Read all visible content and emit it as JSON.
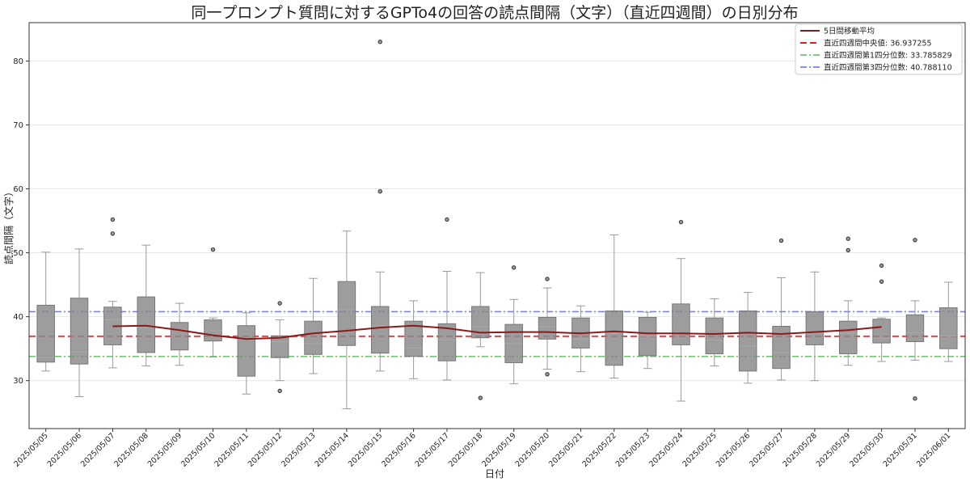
{
  "chart_data": {
    "type": "box",
    "title": "同一プロンプト質問に対するGPTo4の回答の読点間隔（文字）（直近四週間）の日別分布",
    "xlabel": "日付",
    "ylabel": "読点間隔（文字）",
    "ylim": [
      22.5,
      86
    ],
    "yticks": [
      30,
      40,
      50,
      60,
      70,
      80
    ],
    "grid": true,
    "legend_position": "top-right",
    "categories": [
      "2025/05/05",
      "2025/05/06",
      "2025/05/07",
      "2025/05/08",
      "2025/05/09",
      "2025/05/10",
      "2025/05/11",
      "2025/05/12",
      "2025/05/13",
      "2025/05/14",
      "2025/05/15",
      "2025/05/16",
      "2025/05/17",
      "2025/05/18",
      "2025/05/19",
      "2025/05/20",
      "2025/05/21",
      "2025/05/22",
      "2025/05/23",
      "2025/05/24",
      "2025/05/25",
      "2025/05/26",
      "2025/05/27",
      "2025/05/28",
      "2025/05/29",
      "2025/05/30",
      "2025/05/31",
      "2025/06/01"
    ],
    "boxes": [
      {
        "whislo": 31.5,
        "q1": 32.9,
        "med": 33.7,
        "q3": 41.8,
        "whishi": 50.1,
        "fliers": []
      },
      {
        "whislo": 27.5,
        "q1": 32.6,
        "med": 34.5,
        "q3": 42.9,
        "whishi": 50.6,
        "fliers": []
      },
      {
        "whislo": 32.0,
        "q1": 35.6,
        "med": 39.5,
        "q3": 41.5,
        "whishi": 42.4,
        "fliers": [
          55.2,
          53.0
        ]
      },
      {
        "whislo": 32.3,
        "q1": 34.4,
        "med": 38.3,
        "q3": 43.1,
        "whishi": 51.2,
        "fliers": []
      },
      {
        "whislo": 32.4,
        "q1": 34.8,
        "med": 38.0,
        "q3": 39.1,
        "whishi": 42.1,
        "fliers": []
      },
      {
        "whislo": 33.7,
        "q1": 36.2,
        "med": 37.8,
        "q3": 39.5,
        "whishi": 39.8,
        "fliers": [
          50.5
        ]
      },
      {
        "whislo": 27.9,
        "q1": 30.7,
        "med": 36.4,
        "q3": 38.6,
        "whishi": 40.6,
        "fliers": []
      },
      {
        "whislo": 30.0,
        "q1": 33.6,
        "med": 36.1,
        "q3": 37.0,
        "whishi": 39.5,
        "fliers": [
          42.1,
          28.4
        ]
      },
      {
        "whislo": 31.1,
        "q1": 34.1,
        "med": 35.8,
        "q3": 39.3,
        "whishi": 46.0,
        "fliers": []
      },
      {
        "whislo": 25.6,
        "q1": 35.5,
        "med": 41.1,
        "q3": 45.5,
        "whishi": 53.4,
        "fliers": []
      },
      {
        "whislo": 31.5,
        "q1": 34.3,
        "med": 38.6,
        "q3": 41.6,
        "whishi": 47.0,
        "fliers": [
          83.0,
          59.6
        ]
      },
      {
        "whislo": 30.3,
        "q1": 33.8,
        "med": 35.1,
        "q3": 39.3,
        "whishi": 42.5,
        "fliers": []
      },
      {
        "whislo": 30.1,
        "q1": 33.1,
        "med": 36.4,
        "q3": 38.9,
        "whishi": 47.1,
        "fliers": [
          55.2
        ]
      },
      {
        "whislo": 35.3,
        "q1": 36.7,
        "med": 38.4,
        "q3": 41.6,
        "whishi": 46.9,
        "fliers": [
          27.3
        ]
      },
      {
        "whislo": 29.5,
        "q1": 32.8,
        "med": 35.8,
        "q3": 38.8,
        "whishi": 42.7,
        "fliers": [
          47.7
        ]
      },
      {
        "whislo": 31.8,
        "q1": 36.5,
        "med": 38.4,
        "q3": 39.9,
        "whishi": 44.5,
        "fliers": [
          45.9,
          31.0
        ]
      },
      {
        "whislo": 31.4,
        "q1": 35.1,
        "med": 36.5,
        "q3": 39.8,
        "whishi": 41.7,
        "fliers": []
      },
      {
        "whislo": 30.4,
        "q1": 32.4,
        "med": 37.4,
        "q3": 40.9,
        "whishi": 52.8,
        "fliers": []
      },
      {
        "whislo": 31.9,
        "q1": 33.9,
        "med": 37.0,
        "q3": 39.9,
        "whishi": 40.7,
        "fliers": []
      },
      {
        "whislo": 26.8,
        "q1": 35.6,
        "med": 37.3,
        "q3": 42.0,
        "whishi": 49.1,
        "fliers": [
          54.8
        ]
      },
      {
        "whislo": 32.3,
        "q1": 34.2,
        "med": 36.3,
        "q3": 39.8,
        "whishi": 42.8,
        "fliers": []
      },
      {
        "whislo": 29.6,
        "q1": 31.5,
        "med": 35.4,
        "q3": 40.9,
        "whishi": 43.8,
        "fliers": []
      },
      {
        "whislo": 30.1,
        "q1": 31.9,
        "med": 34.4,
        "q3": 38.5,
        "whishi": 46.1,
        "fliers": [
          51.9
        ]
      },
      {
        "whislo": 30.0,
        "q1": 35.6,
        "med": 37.4,
        "q3": 40.8,
        "whishi": 47.0,
        "fliers": []
      },
      {
        "whislo": 32.4,
        "q1": 34.2,
        "med": 37.4,
        "q3": 39.3,
        "whishi": 42.5,
        "fliers": [
          52.2,
          50.4
        ]
      },
      {
        "whislo": 33.0,
        "q1": 35.9,
        "med": 36.6,
        "q3": 39.6,
        "whishi": 39.8,
        "fliers": [
          48.0,
          45.5
        ]
      },
      {
        "whislo": 33.2,
        "q1": 36.1,
        "med": 37.5,
        "q3": 40.3,
        "whishi": 42.5,
        "fliers": [
          52.0,
          27.2
        ]
      },
      {
        "whislo": 33.0,
        "q1": 35.0,
        "med": 37.0,
        "q3": 41.4,
        "whishi": 45.4,
        "fliers": []
      }
    ],
    "series": [
      {
        "name": "5日間移動平均",
        "type": "line",
        "color": "#8b1a1a",
        "x": [
          "2025/05/07",
          "2025/05/08",
          "2025/05/09",
          "2025/05/10",
          "2025/05/11",
          "2025/05/12",
          "2025/05/13",
          "2025/05/14",
          "2025/05/15",
          "2025/05/16",
          "2025/05/17",
          "2025/05/18",
          "2025/05/19",
          "2025/05/20",
          "2025/05/21",
          "2025/05/22",
          "2025/05/23",
          "2025/05/24",
          "2025/05/25",
          "2025/05/26",
          "2025/05/27",
          "2025/05/28",
          "2025/05/29",
          "2025/05/30"
        ],
        "values": [
          38.5,
          38.6,
          37.9,
          37.1,
          36.5,
          36.7,
          37.4,
          37.8,
          38.3,
          38.6,
          38.2,
          37.5,
          37.6,
          37.6,
          37.4,
          37.7,
          37.4,
          37.4,
          37.3,
          37.5,
          37.3,
          37.6,
          37.9,
          38.4
        ]
      }
    ],
    "hlines": [
      {
        "label": "直近四週間中央値: 36.937255",
        "value": 36.937255,
        "color": "#d62728",
        "style": "dashed"
      },
      {
        "label": "直近四週間第1四分位数: 33.785829",
        "value": 33.785829,
        "color": "#5cb85c",
        "style": "dashdot"
      },
      {
        "label": "直近四週間第3四分位数: 40.788110",
        "value": 40.78811,
        "color": "#5b6ee1",
        "style": "dashdot"
      }
    ]
  }
}
